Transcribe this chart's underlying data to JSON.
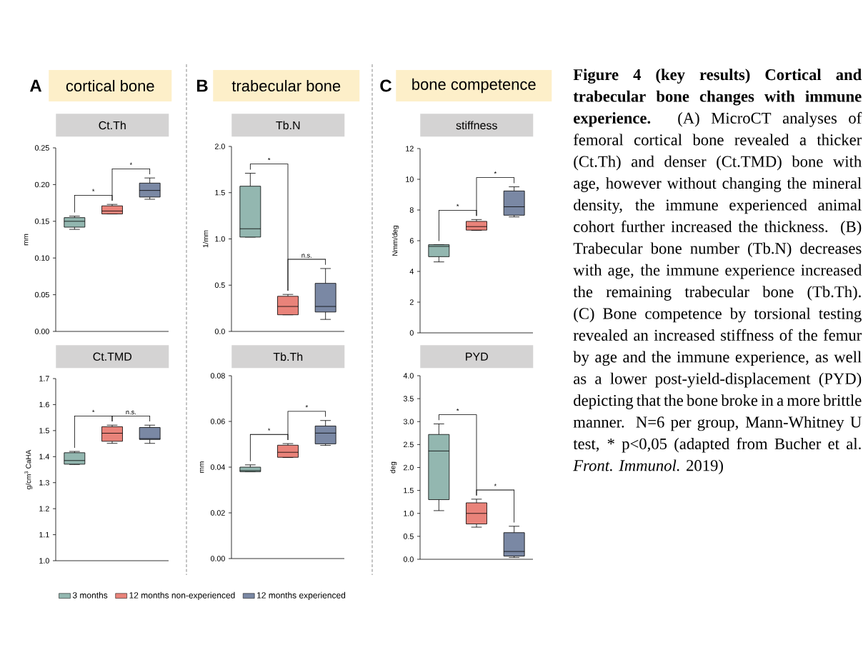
{
  "chart_data": [
    {
      "type": "box",
      "subtitle": "cortical bone",
      "title": "Ct.Th",
      "ylabel": "mm",
      "ylim": [
        0,
        0.25
      ],
      "yticks": [
        {
          "value": 0,
          "label": "0.00"
        },
        0.05,
        {
          "value": 0.1,
          "label": "0.10"
        },
        0.15,
        {
          "value": 0.2,
          "label": "0.20"
        },
        0.25
      ],
      "categories": [
        null,
        null,
        null
      ],
      "tick_labels": "y",
      "annotations": [
        "*",
        "*",
        "A"
      ],
      "series": [
        {
          "color": "#93b7b0",
          "boxes": [
            {
              "low": 0.139,
              "q1": 0.142,
              "median": 0.15,
              "q3": 0.155,
              "high": 0.157
            },
            null,
            null
          ]
        },
        {
          "color": "#e9837a",
          "boxes": [
            null,
            {
              "low": 0.16,
              "q1": 0.16,
              "median": 0.164,
              "q3": 0.171,
              "high": 0.173
            },
            null
          ]
        },
        {
          "color": "#7a88a4",
          "boxes": [
            null,
            null,
            {
              "low": 0.18,
              "q1": 0.183,
              "median": 0.192,
              "q3": 0.202,
              "high": 0.209
            }
          ]
        }
      ]
    },
    {
      "type": "box",
      "title": "Ct.TMD",
      "ylabel": "g/cm$^{3}$ CaHA",
      "ylim": [
        1.0,
        1.7
      ],
      "yticks": [
        {
          "value": 1,
          "label": "1.0"
        },
        1.1,
        1.2,
        1.3,
        1.4,
        1.5,
        1.6,
        1.7
      ],
      "categories": [
        null,
        null,
        null
      ],
      "tick_labels": "y",
      "annotations": [
        "*",
        "n.s."
      ],
      "legend": "bottom",
      "series": [
        {
          "name": "3 months",
          "color": "#93b7b0",
          "boxes": [
            {
              "low": 1.37,
              "q1": 1.371,
              "median": 1.385,
              "q3": 1.415,
              "high": 1.42
            },
            null,
            null
          ]
        },
        {
          "name": "12 months non-experienced",
          "color": "#e9837a",
          "boxes": [
            null,
            {
              "low": 1.451,
              "q1": 1.459,
              "median": 1.49,
              "q3": 1.515,
              "high": 1.521
            },
            null
          ]
        },
        {
          "name": "12 months experienced",
          "color": "#7a88a4",
          "boxes": [
            null,
            null,
            {
              "low": 1.451,
              "q1": 1.466,
              "median": 1.469,
              "q3": 1.512,
              "high": 1.521
            }
          ]
        }
      ]
    },
    {
      "type": "box",
      "subtitle": "trabecular bone",
      "title": "Tb.N",
      "ylabel": "1/mm",
      "ylim": [
        0,
        2.0
      ],
      "yticks": [
        {
          "value": 0,
          "label": "0.0"
        },
        0.5,
        {
          "value": 1,
          "label": "1.0"
        },
        1.5,
        {
          "value": 2,
          "label": "2.0"
        }
      ],
      "categories": [
        null,
        null,
        null
      ],
      "tick_labels": "y",
      "annotations": [
        "*",
        "n.s.",
        "B"
      ],
      "series": [
        {
          "color": "#93b7b0",
          "boxes": [
            {
              "low": 1.02,
              "q1": 1.02,
              "median": 1.11,
              "q3": 1.57,
              "high": 1.71
            },
            null,
            null
          ]
        },
        {
          "color": "#e9837a",
          "boxes": [
            null,
            {
              "low": 0.18,
              "q1": 0.18,
              "median": 0.27,
              "q3": 0.38,
              "high": 0.4
            },
            null
          ]
        },
        {
          "color": "#7a88a4",
          "boxes": [
            null,
            null,
            {
              "low": 0.13,
              "q1": 0.21,
              "median": 0.27,
              "q3": 0.52,
              "high": 0.68
            }
          ]
        }
      ]
    },
    {
      "type": "box",
      "title": "Tb.Th",
      "ylabel": "mm",
      "ylim": [
        0,
        0.08
      ],
      "yticks": [
        {
          "value": 0,
          "label": "0.00"
        },
        0.02,
        0.04,
        0.06,
        0.08
      ],
      "categories": [
        null,
        null,
        null
      ],
      "tick_labels": "y",
      "annotations": [
        "*",
        "*"
      ],
      "series": [
        {
          "color": "#93b7b0",
          "boxes": [
            {
              "low": 0.038,
              "q1": 0.038,
              "median": 0.0385,
              "q3": 0.04,
              "high": 0.041
            },
            null,
            null
          ]
        },
        {
          "color": "#e9837a",
          "boxes": [
            null,
            {
              "low": 0.0442,
              "q1": 0.0443,
              "median": 0.0465,
              "q3": 0.0496,
              "high": 0.0503
            },
            null
          ]
        },
        {
          "color": "#7a88a4",
          "boxes": [
            null,
            null,
            {
              "low": 0.0495,
              "q1": 0.0502,
              "median": 0.0549,
              "q3": 0.058,
              "high": 0.0604
            }
          ]
        }
      ]
    },
    {
      "type": "box",
      "subtitle": "bone competence",
      "title": "stiffness",
      "ylabel": "Nmm/deg",
      "ylim": [
        0,
        12
      ],
      "yticks": [
        0,
        2,
        4,
        6,
        8,
        10,
        12
      ],
      "categories": [
        null,
        null,
        null
      ],
      "tick_labels": "y",
      "annotations": [
        "*",
        "*",
        "C"
      ],
      "series": [
        {
          "color": "#93b7b0",
          "boxes": [
            {
              "low": 4.62,
              "q1": 4.96,
              "median": 5.63,
              "q3": 5.74,
              "high": 5.74
            },
            null,
            null
          ]
        },
        {
          "color": "#e9837a",
          "boxes": [
            null,
            {
              "low": 6.67,
              "q1": 6.69,
              "median": 6.92,
              "q3": 7.26,
              "high": 7.38
            },
            null
          ]
        },
        {
          "color": "#7a88a4",
          "boxes": [
            null,
            null,
            {
              "low": 7.55,
              "q1": 7.66,
              "median": 8.21,
              "q3": 9.24,
              "high": 9.51
            }
          ]
        }
      ]
    },
    {
      "type": "box",
      "title": "PYD",
      "ylabel": "deg",
      "ylim": [
        0,
        4.0
      ],
      "yticks": [
        {
          "value": 0,
          "label": "0.0"
        },
        0.5,
        {
          "value": 1,
          "label": "1.0"
        },
        1.5,
        {
          "value": 2,
          "label": "2.0"
        },
        2.5,
        {
          "value": 3,
          "label": "3.0"
        },
        3.5,
        {
          "value": 4,
          "label": "4.0"
        }
      ],
      "categories": [
        null,
        null,
        null
      ],
      "tick_labels": "y",
      "annotations": [
        "*",
        "*"
      ],
      "series": [
        {
          "color": "#93b7b0",
          "boxes": [
            {
              "low": 1.06,
              "q1": 1.3,
              "median": 2.36,
              "q3": 2.72,
              "high": 2.95
            },
            null,
            null
          ]
        },
        {
          "color": "#e9837a",
          "boxes": [
            null,
            {
              "low": 0.7,
              "q1": 0.77,
              "median": 1.0,
              "q3": 1.23,
              "high": 1.31
            },
            null
          ]
        },
        {
          "color": "#7a88a4",
          "boxes": [
            null,
            null,
            {
              "low": 0.04,
              "q1": 0.07,
              "median": 0.17,
              "q3": 0.58,
              "high": 0.72
            }
          ]
        }
      ]
    },
    {
      "type": "other",
      "annotations": [
        "**Figure 4 (key results) Cortical and trabecular bone changes with immune experience.** (A) MicroCT analyses of femoral cortical bone revealed a thicker (Ct.Th) and denser (Ct.TMD) bone with age, however without changing the mineral density, the immune experienced animal cohort further increased the thickness. (B) Trabecular bone number (Tb.N) decreases with age, the immune experience increased the remaining trabecular bone (Tb.Th). (C) Bone competence by torsional testing revealed an increased stiffness of the femur by age and the immune experience, as well as a lower post-yield-displacement (PYD) depicting that the bone broke in a more brittle manner. N=6 per group, Mann-Whitney U test, * p<0,05 (adapted from Bucher et al. *Front. Immunol.* 2019)"
      ]
    }
  ]
}
